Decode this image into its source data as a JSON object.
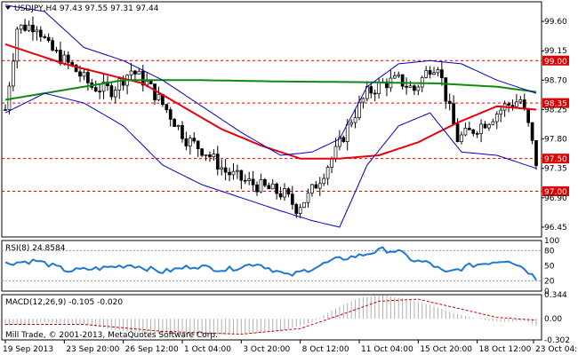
{
  "chart_data": {
    "type": "candlestick",
    "symbol_header": "USDJPY,H4",
    "ohlc_header": "97.43 97.55 97.31 97.44",
    "x_labels": [
      "19 Sep 2013",
      "23 Sep 20:00",
      "26 Sep 12:00",
      "1 Oct 04:00",
      "3 Oct 20:00",
      "8 Oct 12:00",
      "11 Oct 04:00",
      "15 Oct 20:00",
      "18 Oct 12:00",
      "23 Oct 04:00"
    ],
    "y_range": [
      96.3,
      99.9
    ],
    "y_ticks": [
      "99.60",
      "99.15",
      "98.70",
      "98.25",
      "97.80",
      "97.35",
      "96.90",
      "96.45"
    ],
    "levels": [
      {
        "value": 99.0,
        "label": "99.00"
      },
      {
        "value": 98.35,
        "label": "98.35"
      },
      {
        "value": 97.5,
        "label": "97.50"
      },
      {
        "value": 97.0,
        "label": "97.00"
      }
    ],
    "price_path": [
      [
        0,
        98.25
      ],
      [
        3,
        99.5
      ],
      [
        8,
        99.55
      ],
      [
        11,
        99.2
      ],
      [
        17,
        98.9
      ],
      [
        22,
        98.6
      ],
      [
        27,
        98.55
      ],
      [
        32,
        98.85
      ],
      [
        36,
        98.65
      ],
      [
        41,
        98.25
      ],
      [
        46,
        97.8
      ],
      [
        51,
        97.6
      ],
      [
        56,
        97.3
      ],
      [
        61,
        97.15
      ],
      [
        66,
        97.05
      ],
      [
        71,
        96.95
      ],
      [
        74,
        96.75
      ],
      [
        77,
        96.92
      ],
      [
        80,
        97.2
      ],
      [
        84,
        97.6
      ],
      [
        88,
        98.1
      ],
      [
        92,
        98.5
      ],
      [
        96,
        98.65
      ],
      [
        100,
        98.7
      ],
      [
        104,
        98.55
      ],
      [
        108,
        98.9
      ],
      [
        110,
        98.95
      ],
      [
        112,
        98.45
      ],
      [
        115,
        97.8
      ],
      [
        118,
        97.9
      ],
      [
        123,
        98.1
      ],
      [
        127,
        98.3
      ],
      [
        131,
        98.4
      ],
      [
        133,
        98.0
      ],
      [
        135,
        97.44
      ]
    ],
    "candle_count": 136,
    "series": [
      {
        "name": "MA50",
        "color": "#e8000b",
        "points": [
          [
            0,
            99.25
          ],
          [
            15,
            98.95
          ],
          [
            25,
            98.8
          ],
          [
            35,
            98.65
          ],
          [
            45,
            98.3
          ],
          [
            55,
            97.95
          ],
          [
            65,
            97.7
          ],
          [
            75,
            97.5
          ],
          [
            85,
            97.5
          ],
          [
            95,
            97.55
          ],
          [
            105,
            97.75
          ],
          [
            115,
            98.05
          ],
          [
            125,
            98.3
          ],
          [
            135,
            98.25
          ]
        ]
      },
      {
        "name": "MA200",
        "color": "#0d8c10",
        "points": [
          [
            0,
            98.4
          ],
          [
            15,
            98.55
          ],
          [
            30,
            98.7
          ],
          [
            50,
            98.7
          ],
          [
            70,
            98.68
          ],
          [
            90,
            98.67
          ],
          [
            110,
            98.65
          ],
          [
            125,
            98.6
          ],
          [
            135,
            98.52
          ]
        ]
      },
      {
        "name": "Bollinger upper",
        "color": "#0000cc",
        "points": [
          [
            0,
            99.85
          ],
          [
            10,
            99.75
          ],
          [
            20,
            99.2
          ],
          [
            30,
            99.0
          ],
          [
            40,
            98.7
          ],
          [
            50,
            98.3
          ],
          [
            60,
            97.9
          ],
          [
            70,
            97.55
          ],
          [
            78,
            97.6
          ],
          [
            85,
            97.8
          ],
          [
            92,
            98.6
          ],
          [
            100,
            98.95
          ],
          [
            108,
            99.0
          ],
          [
            116,
            98.95
          ],
          [
            125,
            98.7
          ],
          [
            135,
            98.5
          ]
        ]
      },
      {
        "name": "Bollinger lower",
        "color": "#0000cc",
        "points": [
          [
            0,
            98.2
          ],
          [
            10,
            98.5
          ],
          [
            20,
            98.35
          ],
          [
            30,
            98.0
          ],
          [
            40,
            97.4
          ],
          [
            50,
            97.1
          ],
          [
            60,
            96.9
          ],
          [
            70,
            96.7
          ],
          [
            78,
            96.55
          ],
          [
            85,
            96.45
          ],
          [
            92,
            97.4
          ],
          [
            100,
            98.0
          ],
          [
            108,
            98.2
          ],
          [
            116,
            97.6
          ],
          [
            125,
            97.55
          ],
          [
            135,
            97.35
          ]
        ]
      }
    ],
    "rsi": {
      "label": "RSI(8) 24.8584",
      "ticks": [
        "100",
        "80",
        "50",
        "20",
        "0"
      ],
      "ylim": [
        0,
        100
      ],
      "levels": [
        80,
        20
      ],
      "color": "#1f78d0",
      "points": [
        [
          0,
          55
        ],
        [
          8,
          60
        ],
        [
          16,
          40
        ],
        [
          24,
          45
        ],
        [
          32,
          52
        ],
        [
          40,
          38
        ],
        [
          48,
          50
        ],
        [
          56,
          42
        ],
        [
          64,
          55
        ],
        [
          72,
          30
        ],
        [
          78,
          45
        ],
        [
          84,
          62
        ],
        [
          90,
          70
        ],
        [
          96,
          82
        ],
        [
          100,
          78
        ],
        [
          104,
          60
        ],
        [
          108,
          55
        ],
        [
          112,
          35
        ],
        [
          118,
          50
        ],
        [
          124,
          58
        ],
        [
          128,
          62
        ],
        [
          132,
          45
        ],
        [
          135,
          25
        ]
      ]
    },
    "macd": {
      "label": "MACD(12,26,9) -0.105 -0.020",
      "ticks": [
        "0.344",
        "0.00",
        "-0.302"
      ],
      "ylim": [
        -0.302,
        0.344
      ],
      "color": "#b0b0b0",
      "signal_color": "#cc0000",
      "points": [
        [
          0,
          -0.1
        ],
        [
          10,
          -0.05
        ],
        [
          20,
          -0.08
        ],
        [
          30,
          -0.18
        ],
        [
          40,
          -0.22
        ],
        [
          50,
          -0.24
        ],
        [
          60,
          -0.22
        ],
        [
          70,
          -0.18
        ],
        [
          78,
          -0.05
        ],
        [
          84,
          0.15
        ],
        [
          90,
          0.3
        ],
        [
          96,
          0.34
        ],
        [
          102,
          0.28
        ],
        [
          108,
          0.2
        ],
        [
          114,
          0.08
        ],
        [
          120,
          0.0
        ],
        [
          126,
          -0.05
        ],
        [
          132,
          -0.03
        ],
        [
          135,
          -0.1
        ]
      ],
      "signal": [
        [
          0,
          -0.08
        ],
        [
          20,
          -0.08
        ],
        [
          40,
          -0.18
        ],
        [
          60,
          -0.22
        ],
        [
          75,
          -0.14
        ],
        [
          85,
          0.05
        ],
        [
          95,
          0.25
        ],
        [
          105,
          0.28
        ],
        [
          115,
          0.15
        ],
        [
          125,
          0.02
        ],
        [
          135,
          -0.02
        ]
      ]
    },
    "footer_text": "Mill Trade, © 2001-2013, MetaQuotes Software Corp."
  }
}
